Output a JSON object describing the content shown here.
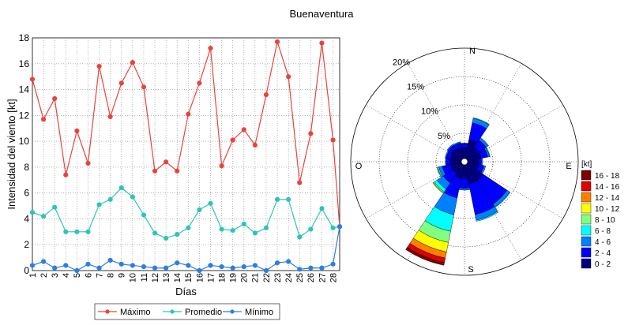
{
  "title": "Buenaventura",
  "chart_data": [
    {
      "type": "line",
      "xlabel": "Días",
      "ylabel": "Intensidad del viento [kt]",
      "xlim": [
        1,
        28
      ],
      "ylim": [
        0,
        18
      ],
      "x_ticks": [
        "1",
        "2",
        "3",
        "4",
        "5",
        "6",
        "7",
        "8",
        "9",
        "10",
        "11",
        "12",
        "13",
        "14",
        "15",
        "16",
        "17",
        "18",
        "19",
        "20",
        "21",
        "22",
        "23",
        "24",
        "25",
        "26",
        "27",
        "28"
      ],
      "y_ticks": [
        "0",
        "2",
        "4",
        "6",
        "8",
        "10",
        "12",
        "14",
        "16",
        "18"
      ],
      "grid": true,
      "legend_position": "bottom",
      "series": [
        {
          "name": "Máximo",
          "color": "#e8443d",
          "values": [
            14.8,
            11.7,
            13.3,
            7.4,
            10.8,
            8.3,
            15.8,
            11.9,
            14.5,
            16.1,
            14.2,
            7.7,
            8.4,
            7.7,
            12.1,
            14.5,
            17.2,
            8.1,
            10.1,
            10.9,
            9.7,
            13.6,
            17.7,
            15.0,
            6.8,
            10.6,
            17.6,
            10.1
          ]
        },
        {
          "name": "Promedio",
          "color": "#2fc4b6",
          "values": [
            4.5,
            4.2,
            4.9,
            3.0,
            3.0,
            3.0,
            5.1,
            5.5,
            6.4,
            5.7,
            4.3,
            2.9,
            2.5,
            2.8,
            3.3,
            4.7,
            5.2,
            3.2,
            3.1,
            3.6,
            2.9,
            3.3,
            5.5,
            5.5,
            2.6,
            3.2,
            4.8,
            3.3
          ]
        },
        {
          "name": "Mínimo",
          "color": "#2a7fe0",
          "values": [
            0.4,
            0.7,
            0.2,
            0.4,
            0.0,
            0.5,
            0.2,
            0.8,
            0.5,
            0.4,
            0.3,
            0.2,
            0.2,
            0.6,
            0.4,
            0.0,
            0.4,
            0.3,
            0.2,
            0.3,
            0.4,
            0.0,
            0.6,
            0.7,
            0.1,
            0.2,
            0.2,
            0.5
          ]
        }
      ],
      "extra_last_day_value": 3.4
    },
    {
      "type": "windrose",
      "directions": {
        "north": "N",
        "east": "E",
        "south": "S",
        "west": "O"
      },
      "ring_labels": [
        "5%",
        "10%",
        "15%",
        "20%"
      ],
      "legend_title": "[kt]",
      "legend_position": "right",
      "bins": [
        {
          "label": "16 - 18",
          "color": "#7a0000"
        },
        {
          "label": "14 - 16",
          "color": "#e00000"
        },
        {
          "label": "12 - 14",
          "color": "#ff8000"
        },
        {
          "label": "10 - 12",
          "color": "#ffff00"
        },
        {
          "label": "8 - 10",
          "color": "#80ff80"
        },
        {
          "label": "6 - 8",
          "color": "#00ffff"
        },
        {
          "label": "4 - 6",
          "color": "#0080ff"
        },
        {
          "label": "2 - 4",
          "color": "#0000ff"
        },
        {
          "label": "0 - 2",
          "color": "#000080"
        }
      ],
      "sectors": [
        {
          "direction_deg": 0,
          "cumulative_percent": [
            2.5,
            3.2,
            3.3,
            3.3,
            3.3,
            3.3,
            3.3,
            3.3,
            3.3
          ]
        },
        {
          "direction_deg": 22.5,
          "cumulative_percent": [
            4.0,
            7.0,
            7.8,
            7.9,
            7.9,
            7.9,
            7.9,
            7.9,
            7.9
          ]
        },
        {
          "direction_deg": 45,
          "cumulative_percent": [
            3.0,
            4.6,
            5.0,
            5.1,
            5.1,
            5.1,
            5.1,
            5.1,
            5.1
          ]
        },
        {
          "direction_deg": 67.5,
          "cumulative_percent": [
            3.0,
            4.2,
            4.5,
            4.6,
            4.6,
            4.6,
            4.6,
            4.6,
            4.6
          ]
        },
        {
          "direction_deg": 90,
          "cumulative_percent": [
            2.5,
            3.0,
            3.2,
            3.2,
            3.2,
            3.2,
            3.2,
            3.2,
            3.2
          ]
        },
        {
          "direction_deg": 112.5,
          "cumulative_percent": [
            2.5,
            3.5,
            3.8,
            3.8,
            3.8,
            3.8,
            3.8,
            3.8,
            3.8
          ]
        },
        {
          "direction_deg": 135,
          "cumulative_percent": [
            4.0,
            9.0,
            9.6,
            9.7,
            9.7,
            9.7,
            9.7,
            9.7,
            9.7
          ]
        },
        {
          "direction_deg": 157.5,
          "cumulative_percent": [
            4.0,
            9.5,
            10.5,
            10.7,
            10.7,
            10.7,
            10.7,
            10.7,
            10.7
          ]
        },
        {
          "direction_deg": 180,
          "cumulative_percent": [
            3.0,
            4.7,
            5.0,
            5.0,
            5.0,
            5.0,
            5.0,
            5.0,
            5.0
          ]
        },
        {
          "direction_deg": 202.5,
          "cumulative_percent": [
            3.0,
            6.5,
            9.5,
            12.5,
            14.5,
            16.2,
            17.3,
            18.1,
            18.6
          ]
        },
        {
          "direction_deg": 225,
          "cumulative_percent": [
            2.5,
            4.5,
            5.8,
            6.4,
            6.6,
            6.7,
            6.7,
            6.7,
            6.7
          ]
        },
        {
          "direction_deg": 247.5,
          "cumulative_percent": [
            2.5,
            4.0,
            4.6,
            4.8,
            4.9,
            4.9,
            4.9,
            4.9,
            4.9
          ]
        },
        {
          "direction_deg": 270,
          "cumulative_percent": [
            2.5,
            3.2,
            3.4,
            3.4,
            3.4,
            3.4,
            3.4,
            3.4,
            3.4
          ]
        },
        {
          "direction_deg": 292.5,
          "cumulative_percent": [
            2.5,
            3.3,
            3.5,
            3.5,
            3.5,
            3.5,
            3.5,
            3.5,
            3.5
          ]
        },
        {
          "direction_deg": 315,
          "cumulative_percent": [
            2.8,
            3.5,
            3.7,
            3.7,
            3.7,
            3.7,
            3.7,
            3.7,
            3.7
          ]
        },
        {
          "direction_deg": 337.5,
          "cumulative_percent": [
            2.5,
            3.4,
            3.6,
            3.6,
            3.6,
            3.6,
            3.6,
            3.6,
            3.6
          ]
        }
      ]
    }
  ]
}
